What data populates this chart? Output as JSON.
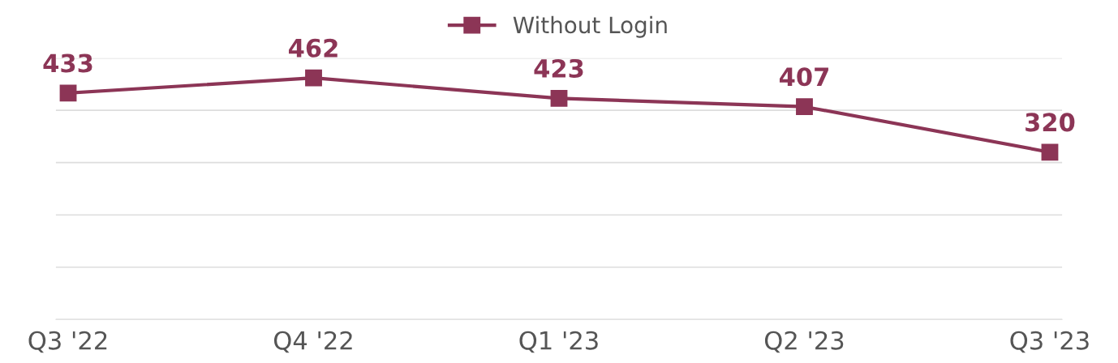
{
  "chart_data": {
    "type": "line",
    "categories": [
      "Q3 '22",
      "Q4 '22",
      "Q1 '23",
      "Q2 '23",
      "Q3 '23"
    ],
    "series": [
      {
        "name": "Without Login",
        "color": "#8c3556",
        "values": [
          433,
          462,
          423,
          407,
          320
        ]
      }
    ],
    "ylim": [
      0,
      500
    ],
    "yticks": [
      {
        "value": 0,
        "label": null
      },
      {
        "value": 100,
        "label": null
      },
      {
        "value": 200,
        "label": null
      },
      {
        "value": 300,
        "label": null
      },
      {
        "value": 400,
        "label": null
      },
      {
        "value": 500,
        "label": null
      }
    ],
    "tick_labels": "x",
    "grid": "y",
    "legend": "top",
    "marker": "square",
    "line_style": "solid",
    "data_labels": true
  }
}
